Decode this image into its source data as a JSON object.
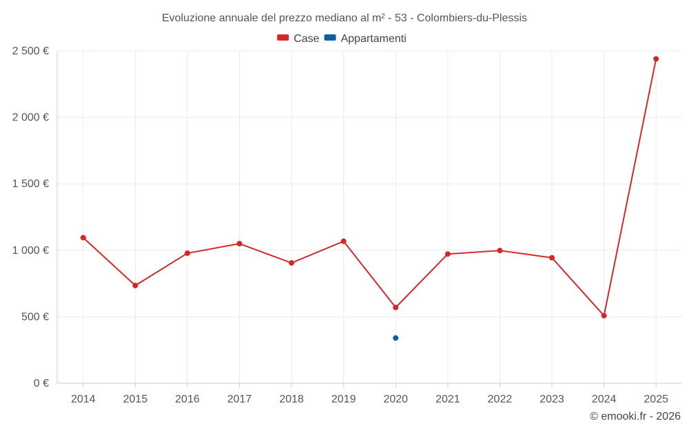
{
  "chart_data": {
    "type": "line",
    "title": "Evoluzione annuale del prezzo mediano al m² - 53 - Colombiers-du-Plessis",
    "categories": [
      "2014",
      "2015",
      "2016",
      "2017",
      "2018",
      "2019",
      "2020",
      "2021",
      "2022",
      "2023",
      "2024",
      "2025"
    ],
    "series": [
      {
        "name": "Case",
        "color": "#d62728",
        "values": [
          1095,
          735,
          978,
          1050,
          905,
          1068,
          570,
          972,
          998,
          944,
          508,
          2440
        ]
      },
      {
        "name": "Appartamenti",
        "color": "#0a60a0",
        "values": [
          null,
          null,
          null,
          null,
          null,
          null,
          340,
          null,
          null,
          null,
          null,
          null
        ]
      }
    ],
    "ylim": [
      0,
      2500
    ],
    "yticks": [
      0,
      500,
      1000,
      1500,
      2000,
      2500
    ],
    "ytick_labels": [
      "0 €",
      "500 €",
      "1 000 €",
      "1 500 €",
      "2 000 €",
      "2 500 €"
    ],
    "xlabel": "",
    "ylabel": "",
    "legend_position": "top-center",
    "grid": true
  },
  "footer": "© emooki.fr - 2026"
}
